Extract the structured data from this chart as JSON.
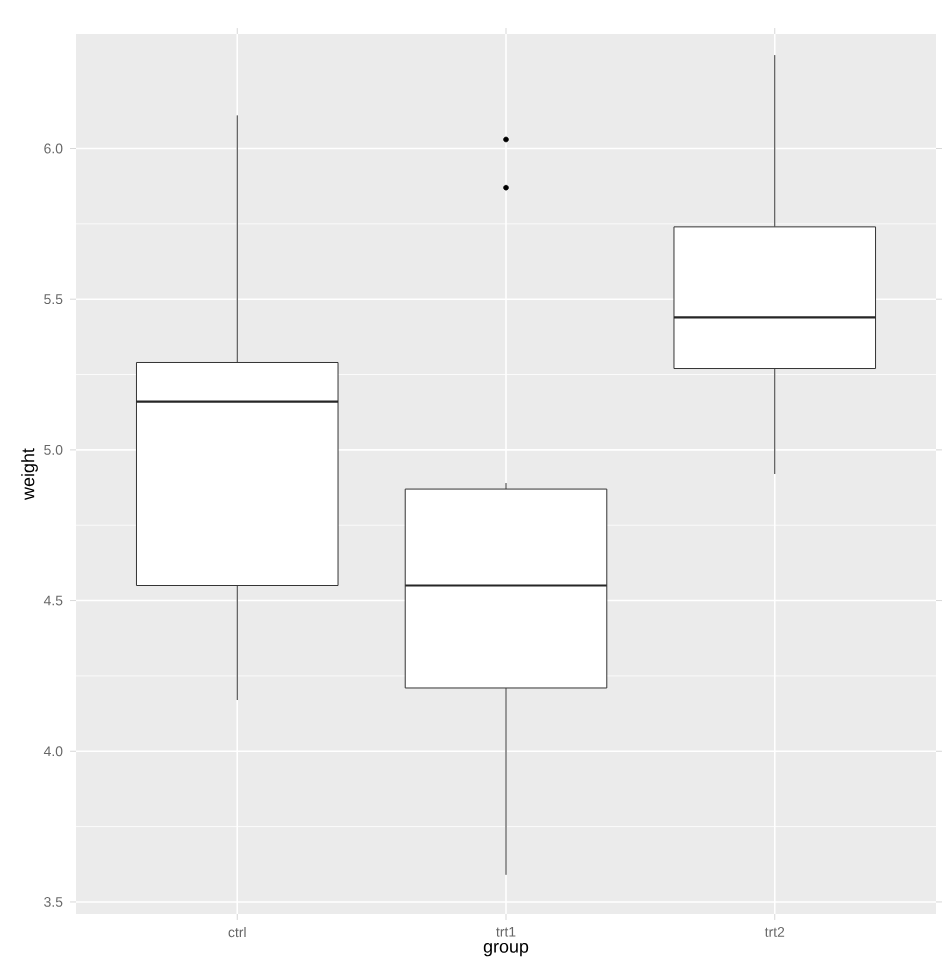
{
  "chart_data": {
    "type": "box",
    "xlabel": "group",
    "ylabel": "weight",
    "categories": [
      "ctrl",
      "trt1",
      "trt2"
    ],
    "boxes": [
      {
        "low": 4.17,
        "q1": 4.55,
        "median": 5.16,
        "q3": 5.29,
        "high": 6.11
      },
      {
        "low": 3.59,
        "q1": 4.21,
        "median": 4.55,
        "q3": 4.87,
        "high": 4.89,
        "outliers": [
          5.87,
          6.03
        ]
      },
      {
        "low": 4.92,
        "q1": 5.27,
        "median": 5.44,
        "q3": 5.74,
        "high": 6.31
      }
    ],
    "ylim": [
      3.46,
      6.38
    ],
    "yticks": [
      3.5,
      {
        "value": 4,
        "label": "4.0"
      },
      4.5,
      {
        "value": 5,
        "label": "5.0"
      },
      5.5,
      {
        "value": 6,
        "label": "6.0"
      }
    ],
    "grid": true
  }
}
